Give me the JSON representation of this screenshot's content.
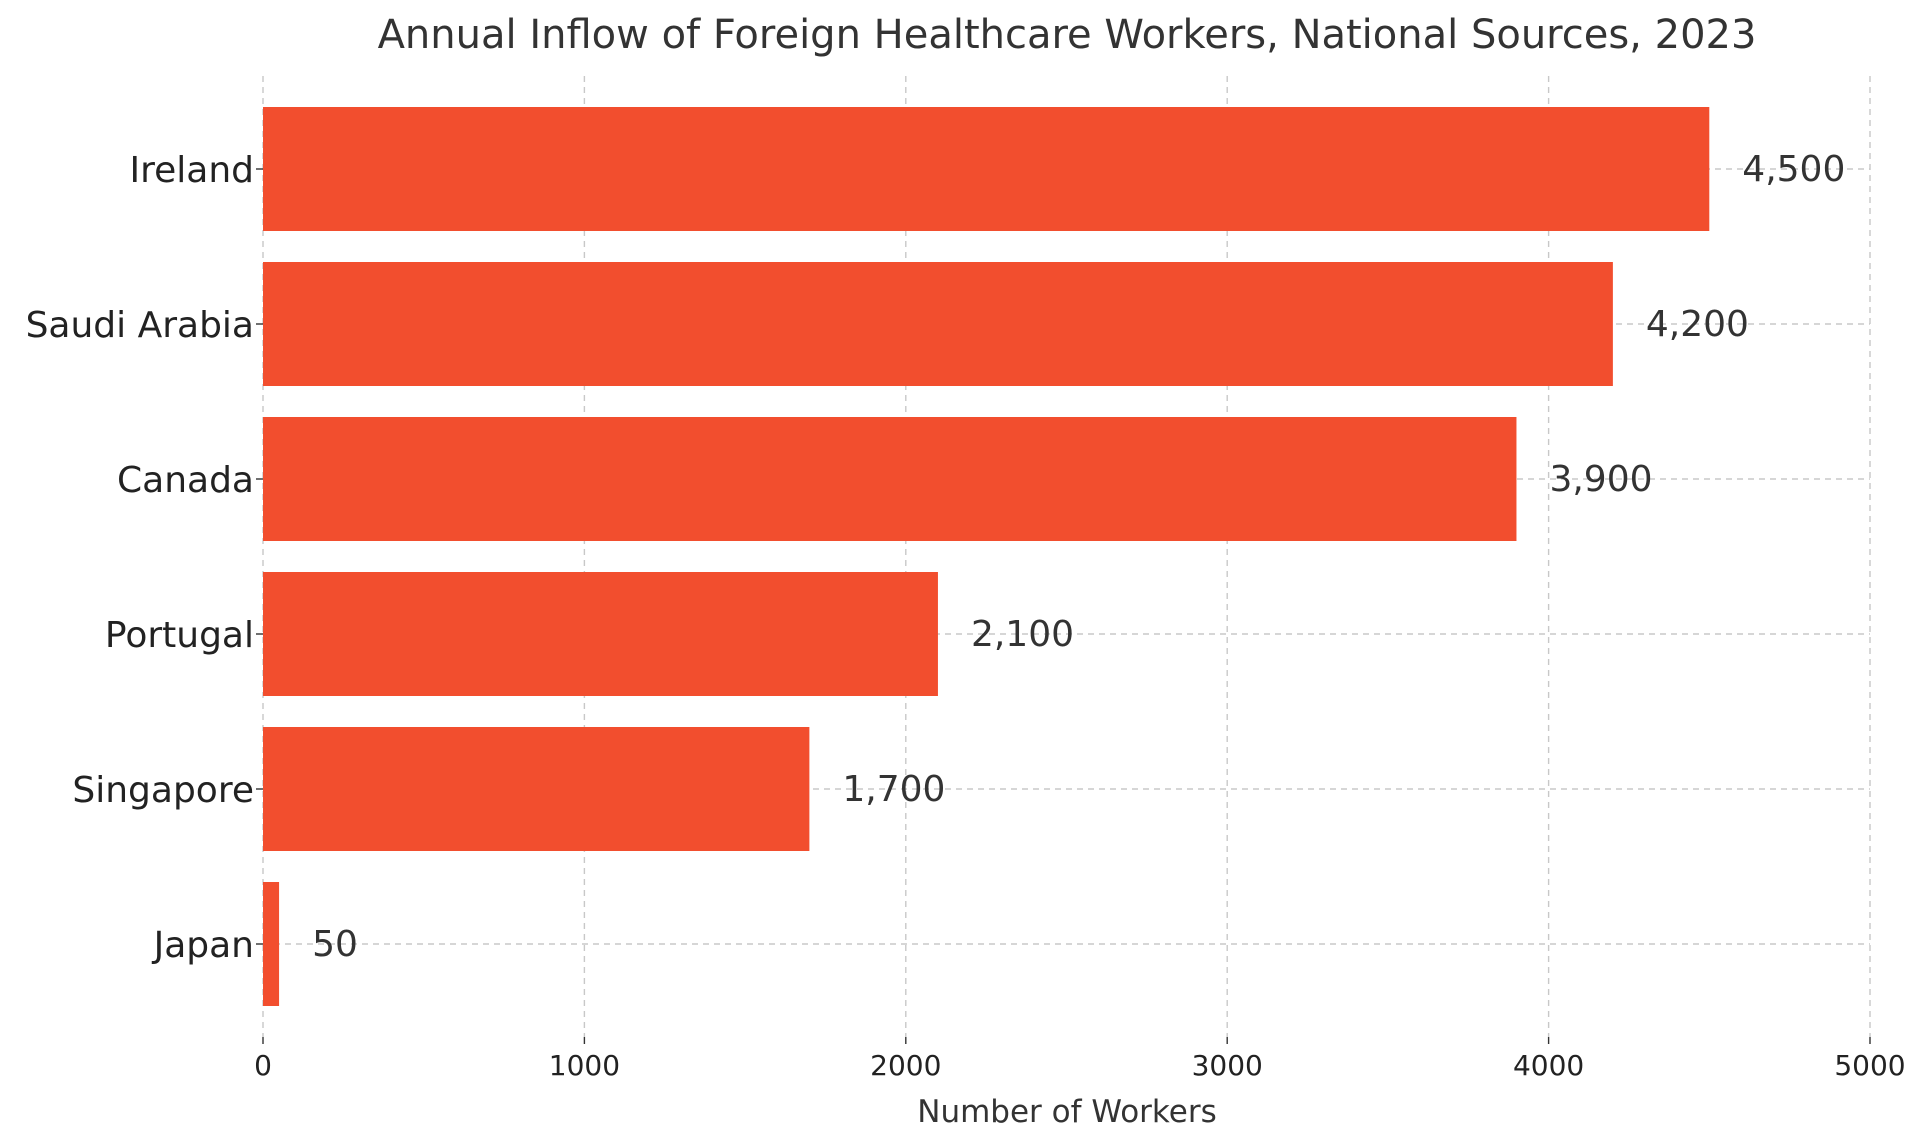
{
  "chart_data": {
    "type": "bar",
    "orientation": "horizontal",
    "title": "Annual Inflow of Foreign Healthcare Workers, National Sources, 2023",
    "xlabel": "Number of Workers",
    "ylabel": "",
    "xlim": [
      0,
      5000
    ],
    "xticks": [
      0,
      1000,
      2000,
      3000,
      4000,
      5000
    ],
    "xtick_labels": [
      "0",
      "1000",
      "2000",
      "3000",
      "4000",
      "5000"
    ],
    "categories": [
      "Ireland",
      "Saudi Arabia",
      "Canada",
      "Portugal",
      "Singapore",
      "Japan"
    ],
    "values": [
      4500,
      4200,
      3900,
      2100,
      1700,
      50
    ],
    "value_labels": [
      "4,500",
      "4,200",
      "3,900",
      "2,100",
      "1,700",
      "50"
    ],
    "bar_color": "#f24e2e",
    "grid": true,
    "legend": "none"
  }
}
